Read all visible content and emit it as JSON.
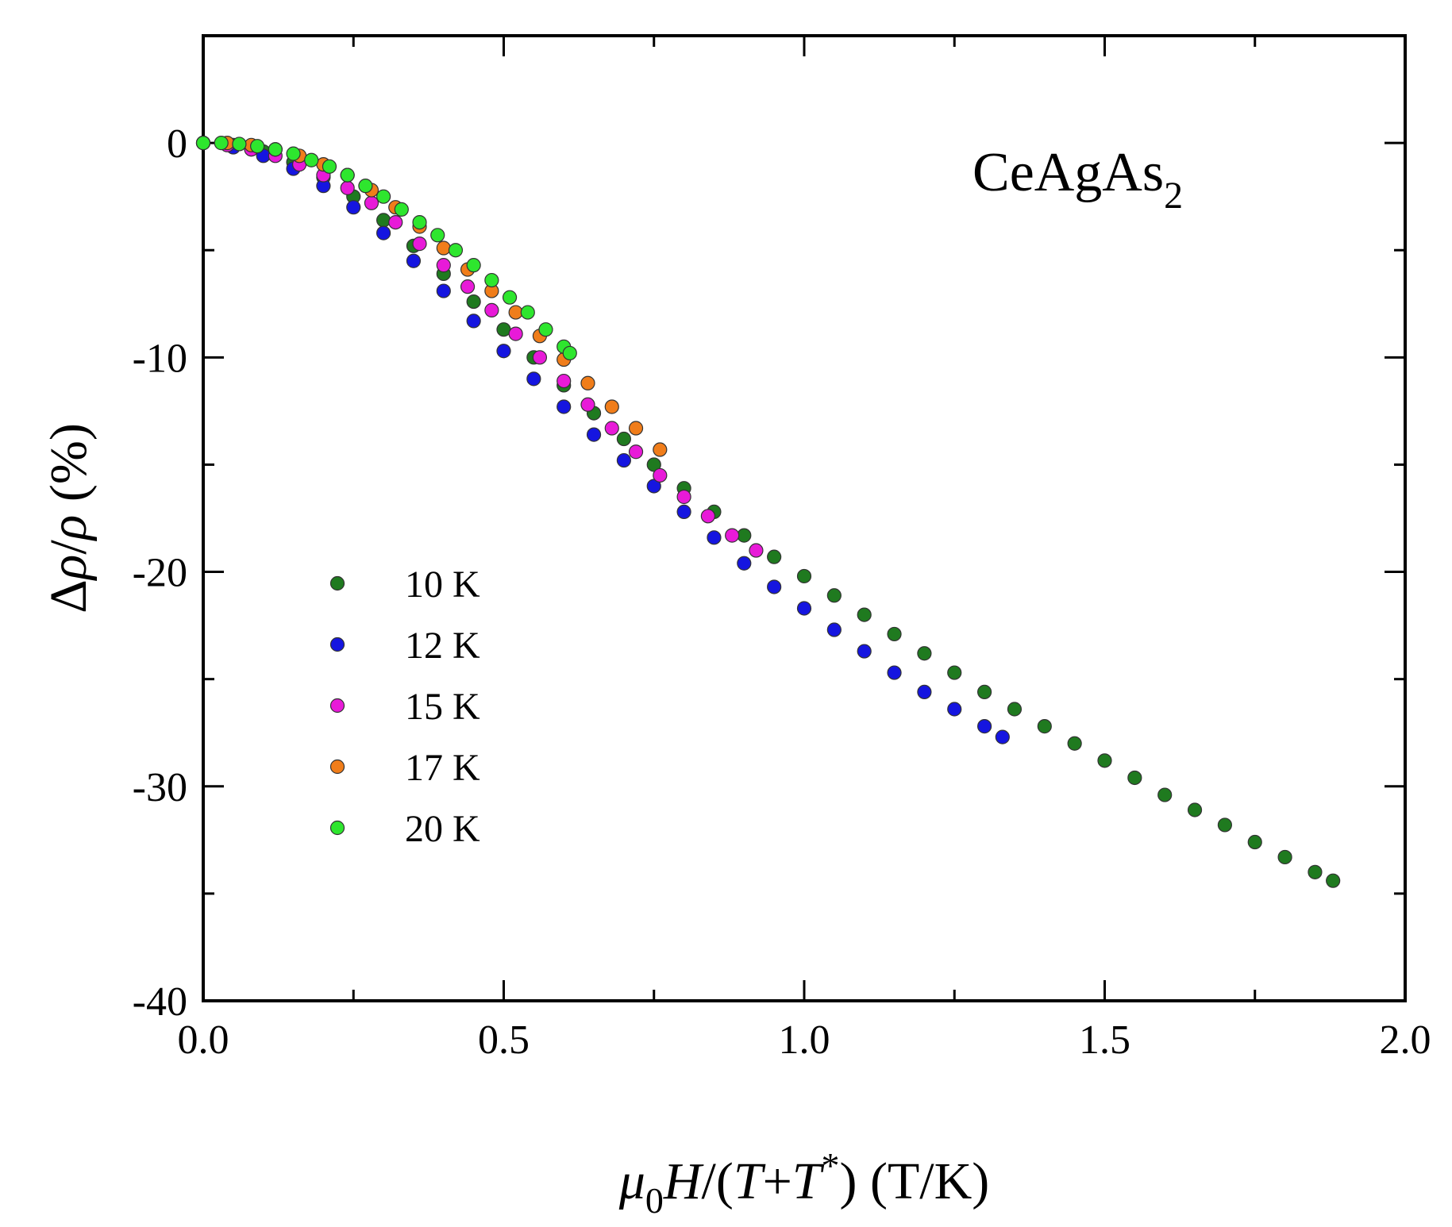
{
  "chart_data": {
    "type": "scatter",
    "title": "",
    "annotation": {
      "main": "CeAgAs",
      "subscript": "2"
    },
    "xlabel": {
      "mu": "μ",
      "sub0": "0",
      "H": "H",
      "rest1": "/(",
      "T": "T",
      "plus": "+",
      "T2": "T",
      "star": "*",
      "rest2": ") (T/K)"
    },
    "ylabel": {
      "delta": "Δ",
      "rho1": "ρ",
      "slash": "/",
      "rho2": "ρ",
      "unit": " (%)"
    },
    "xlim": [
      0.0,
      2.0
    ],
    "ylim": [
      -40,
      5
    ],
    "xticks": [
      0.0,
      0.5,
      1.0,
      1.5,
      2.0
    ],
    "xtick_labels": [
      "0.0",
      "0.5",
      "1.0",
      "1.5",
      "2.0"
    ],
    "yticks": [
      0,
      -10,
      -20,
      -30,
      -40
    ],
    "ytick_labels": [
      "0",
      "-10",
      "-20",
      "-30",
      "-40"
    ],
    "legend_position": "left-middle",
    "series": [
      {
        "name": "10 K",
        "color": "#1f7a1f",
        "x": [
          0.0,
          0.05,
          0.1,
          0.15,
          0.2,
          0.25,
          0.3,
          0.35,
          0.4,
          0.45,
          0.5,
          0.55,
          0.6,
          0.65,
          0.7,
          0.75,
          0.8,
          0.85,
          0.9,
          0.95,
          1.0,
          1.05,
          1.1,
          1.15,
          1.2,
          1.25,
          1.3,
          1.35,
          1.4,
          1.45,
          1.5,
          1.55,
          1.6,
          1.65,
          1.7,
          1.75,
          1.8,
          1.85,
          1.88
        ],
        "y": [
          0.0,
          -0.1,
          -0.4,
          -0.9,
          -1.6,
          -2.5,
          -3.6,
          -4.8,
          -6.1,
          -7.4,
          -8.7,
          -10.0,
          -11.3,
          -12.6,
          -13.8,
          -15.0,
          -16.1,
          -17.2,
          -18.3,
          -19.3,
          -20.2,
          -21.1,
          -22.0,
          -22.9,
          -23.8,
          -24.7,
          -25.6,
          -26.4,
          -27.2,
          -28.0,
          -28.8,
          -29.6,
          -30.4,
          -31.1,
          -31.8,
          -32.6,
          -33.3,
          -34.0,
          -34.4
        ]
      },
      {
        "name": "12 K",
        "color": "#1515e0",
        "x": [
          0.0,
          0.05,
          0.1,
          0.15,
          0.2,
          0.25,
          0.3,
          0.35,
          0.4,
          0.45,
          0.5,
          0.55,
          0.6,
          0.65,
          0.7,
          0.75,
          0.8,
          0.85,
          0.9,
          0.95,
          1.0,
          1.05,
          1.1,
          1.15,
          1.2,
          1.25,
          1.3,
          1.33
        ],
        "y": [
          0.0,
          -0.2,
          -0.6,
          -1.2,
          -2.0,
          -3.0,
          -4.2,
          -5.5,
          -6.9,
          -8.3,
          -9.7,
          -11.0,
          -12.3,
          -13.6,
          -14.8,
          -16.0,
          -17.2,
          -18.4,
          -19.6,
          -20.7,
          -21.7,
          -22.7,
          -23.7,
          -24.7,
          -25.6,
          -26.4,
          -27.2,
          -27.7
        ]
      },
      {
        "name": "15 K",
        "color": "#e81ad8",
        "x": [
          0.0,
          0.04,
          0.08,
          0.12,
          0.16,
          0.2,
          0.24,
          0.28,
          0.32,
          0.36,
          0.4,
          0.44,
          0.48,
          0.52,
          0.56,
          0.6,
          0.64,
          0.68,
          0.72,
          0.76,
          0.8,
          0.84,
          0.88,
          0.92
        ],
        "y": [
          0.0,
          -0.1,
          -0.3,
          -0.6,
          -1.0,
          -1.5,
          -2.1,
          -2.8,
          -3.7,
          -4.7,
          -5.7,
          -6.7,
          -7.8,
          -8.9,
          -10.0,
          -11.1,
          -12.2,
          -13.3,
          -14.4,
          -15.5,
          -16.5,
          -17.4,
          -18.3,
          -19.0
        ]
      },
      {
        "name": "17 K",
        "color": "#f07d1a",
        "x": [
          0.0,
          0.04,
          0.08,
          0.12,
          0.16,
          0.2,
          0.24,
          0.28,
          0.32,
          0.36,
          0.4,
          0.44,
          0.48,
          0.52,
          0.56,
          0.6,
          0.64,
          0.68,
          0.72,
          0.76
        ],
        "y": [
          0.0,
          0.0,
          -0.1,
          -0.3,
          -0.6,
          -1.0,
          -1.5,
          -2.2,
          -3.0,
          -3.9,
          -4.9,
          -5.9,
          -6.9,
          -7.9,
          -9.0,
          -10.1,
          -11.2,
          -12.3,
          -13.3,
          -14.3
        ]
      },
      {
        "name": "20 K",
        "color": "#2ee62e",
        "x": [
          0.0,
          0.03,
          0.06,
          0.09,
          0.12,
          0.15,
          0.18,
          0.21,
          0.24,
          0.27,
          0.3,
          0.33,
          0.36,
          0.39,
          0.42,
          0.45,
          0.48,
          0.51,
          0.54,
          0.57,
          0.6,
          0.61
        ],
        "y": [
          0.0,
          0.0,
          -0.05,
          -0.15,
          -0.3,
          -0.5,
          -0.8,
          -1.1,
          -1.5,
          -2.0,
          -2.5,
          -3.1,
          -3.7,
          -4.3,
          -5.0,
          -5.7,
          -6.4,
          -7.2,
          -7.9,
          -8.7,
          -9.5,
          -9.8
        ]
      }
    ]
  }
}
